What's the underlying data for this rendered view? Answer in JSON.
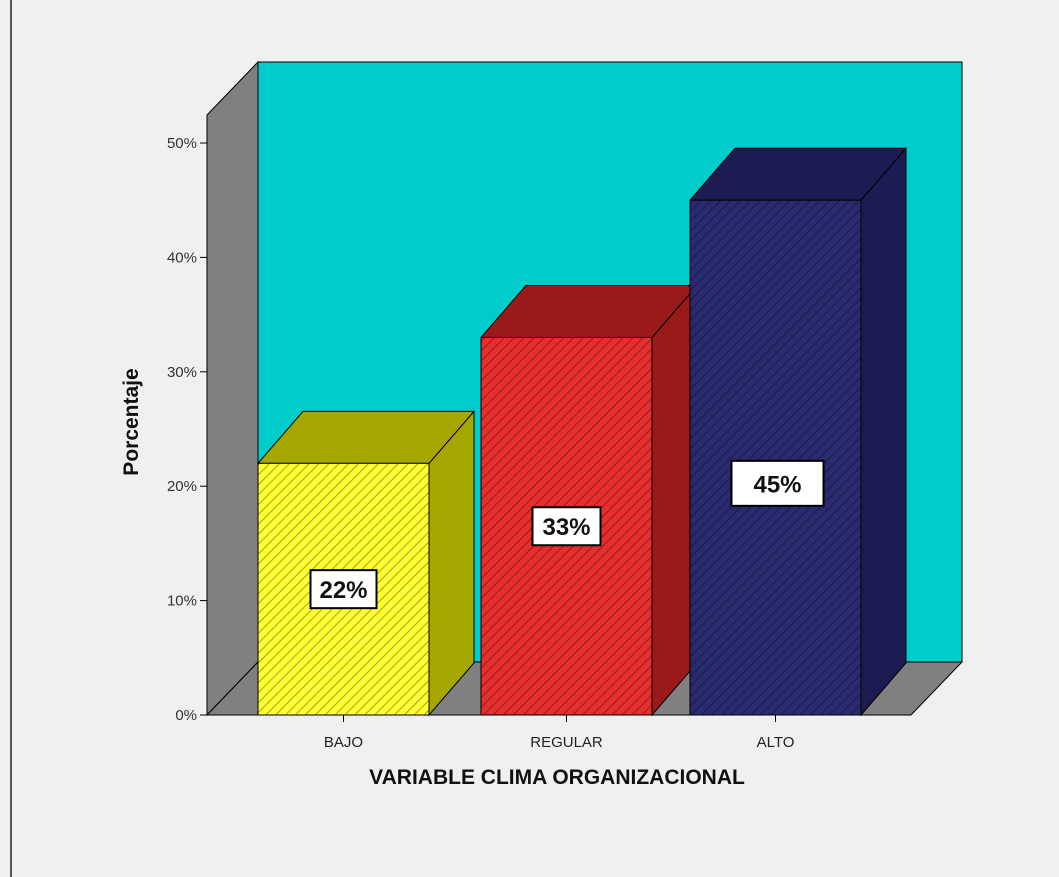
{
  "chart_data": {
    "type": "bar",
    "categories": [
      "BAJO",
      "REGULAR",
      "ALTO"
    ],
    "values": [
      22,
      33,
      45
    ],
    "data_labels": [
      "22%",
      "33%",
      "45%"
    ],
    "ylabel": "Porcentaje",
    "xlabel": "VARIABLE CLIMA ORGANIZACIONAL",
    "y_ticks": [
      "0%",
      "10%",
      "20%",
      "30%",
      "40%",
      "50%"
    ],
    "ylim": [
      0,
      50
    ],
    "grid": false,
    "legend": "none",
    "style": "3d",
    "colors": {
      "back_wall": "#00cccc",
      "side_wall": "#808080",
      "floor": "#808080",
      "bars": [
        "#ffff33",
        "#e62e2e",
        "#2a2a70"
      ],
      "bar_sides": [
        "#a6a600",
        "#9a1a1a",
        "#1c1c52"
      ]
    }
  }
}
